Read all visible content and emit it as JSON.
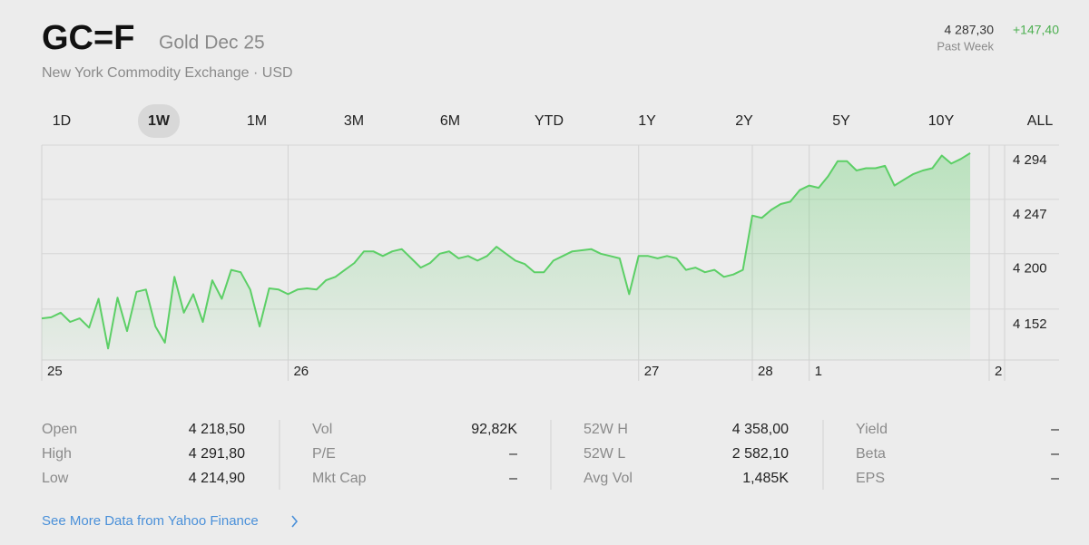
{
  "header": {
    "symbol": "GC=F",
    "name": "Gold Dec 25",
    "exchange": "New York Commodity Exchange · USD",
    "price": "4 287,30",
    "change": "+147,40",
    "period": "Past Week"
  },
  "tabs": {
    "items": [
      "1D",
      "1W",
      "1M",
      "3M",
      "6M",
      "YTD",
      "1Y",
      "2Y",
      "5Y",
      "10Y",
      "ALL"
    ],
    "selected": 1
  },
  "chart_data": {
    "type": "line",
    "color": "#5ccf66",
    "categories": [
      "25",
      null,
      null,
      null,
      null,
      null,
      null,
      null,
      null,
      null,
      null,
      null,
      null,
      null,
      null,
      null,
      null,
      null,
      null,
      null,
      null,
      null,
      null,
      null,
      null,
      null,
      "26",
      null,
      null,
      null,
      null,
      null,
      null,
      null,
      null,
      null,
      null,
      null,
      null,
      null,
      null,
      null,
      null,
      null,
      null,
      null,
      null,
      null,
      null,
      null,
      null,
      null,
      null,
      null,
      null,
      null,
      null,
      null,
      null,
      null,
      null,
      null,
      null,
      "27",
      null,
      null,
      null,
      null,
      null,
      null,
      null,
      null,
      null,
      null,
      null,
      "28",
      null,
      null,
      null,
      null,
      null,
      "1",
      null,
      null,
      null,
      null,
      null,
      null,
      null,
      null,
      null,
      null,
      null,
      null,
      null,
      null,
      null,
      null,
      null,
      null,
      "2"
    ],
    "values": [
      4144,
      4145,
      4149,
      4141,
      4144,
      4136,
      4161,
      4118,
      4162,
      4133,
      4167,
      4169,
      4137,
      4123,
      4180,
      4149,
      4165,
      4141,
      4177,
      4161,
      4186,
      4184,
      4169,
      4137,
      4170,
      4169,
      4165,
      4169,
      4170,
      4169,
      4177,
      4180,
      4186,
      4192,
      4202,
      4202,
      4198,
      4202,
      4204,
      4196,
      4188,
      4192,
      4200,
      4202,
      4196,
      4198,
      4194,
      4198,
      4206,
      4200,
      4194,
      4191,
      4184,
      4184,
      4194,
      4198,
      4202,
      4203,
      4204,
      4200,
      4198,
      4196,
      4165,
      4198,
      4198,
      4196,
      4198,
      4196,
      4186,
      4188,
      4184,
      4186,
      4180,
      4182,
      4186,
      4233,
      4231,
      4238,
      4243,
      4245,
      4255,
      4259,
      4257,
      4267,
      4280,
      4280,
      4272,
      4274,
      4274,
      4276,
      4259,
      4264,
      4269,
      4272,
      4274,
      4285,
      4278,
      4282,
      4287,
      null,
      null
    ],
    "ylim": [
      4108,
      4294
    ],
    "yticks": [
      {
        "value": 4152,
        "label": "4 152"
      },
      {
        "value": 4200,
        "label": "4 200"
      },
      {
        "value": 4247,
        "label": "4 247"
      },
      {
        "value": 4294,
        "label": "4 294"
      }
    ],
    "grid": true
  },
  "stats": [
    [
      {
        "label": "Open",
        "value": "4 218,50"
      },
      {
        "label": "High",
        "value": "4 291,80"
      },
      {
        "label": "Low",
        "value": "4 214,90"
      }
    ],
    [
      {
        "label": "Vol",
        "value": "92,82K"
      },
      {
        "label": "P/E",
        "value": "–"
      },
      {
        "label": "Mkt Cap",
        "value": "–"
      }
    ],
    [
      {
        "label": "52W H",
        "value": "4 358,00"
      },
      {
        "label": "52W L",
        "value": "2 582,10"
      },
      {
        "label": "Avg Vol",
        "value": "1,485K"
      }
    ],
    [
      {
        "label": "Yield",
        "value": "–"
      },
      {
        "label": "Beta",
        "value": "–"
      },
      {
        "label": "EPS",
        "value": "–"
      }
    ]
  ],
  "link": "See More Data from Yahoo Finance"
}
